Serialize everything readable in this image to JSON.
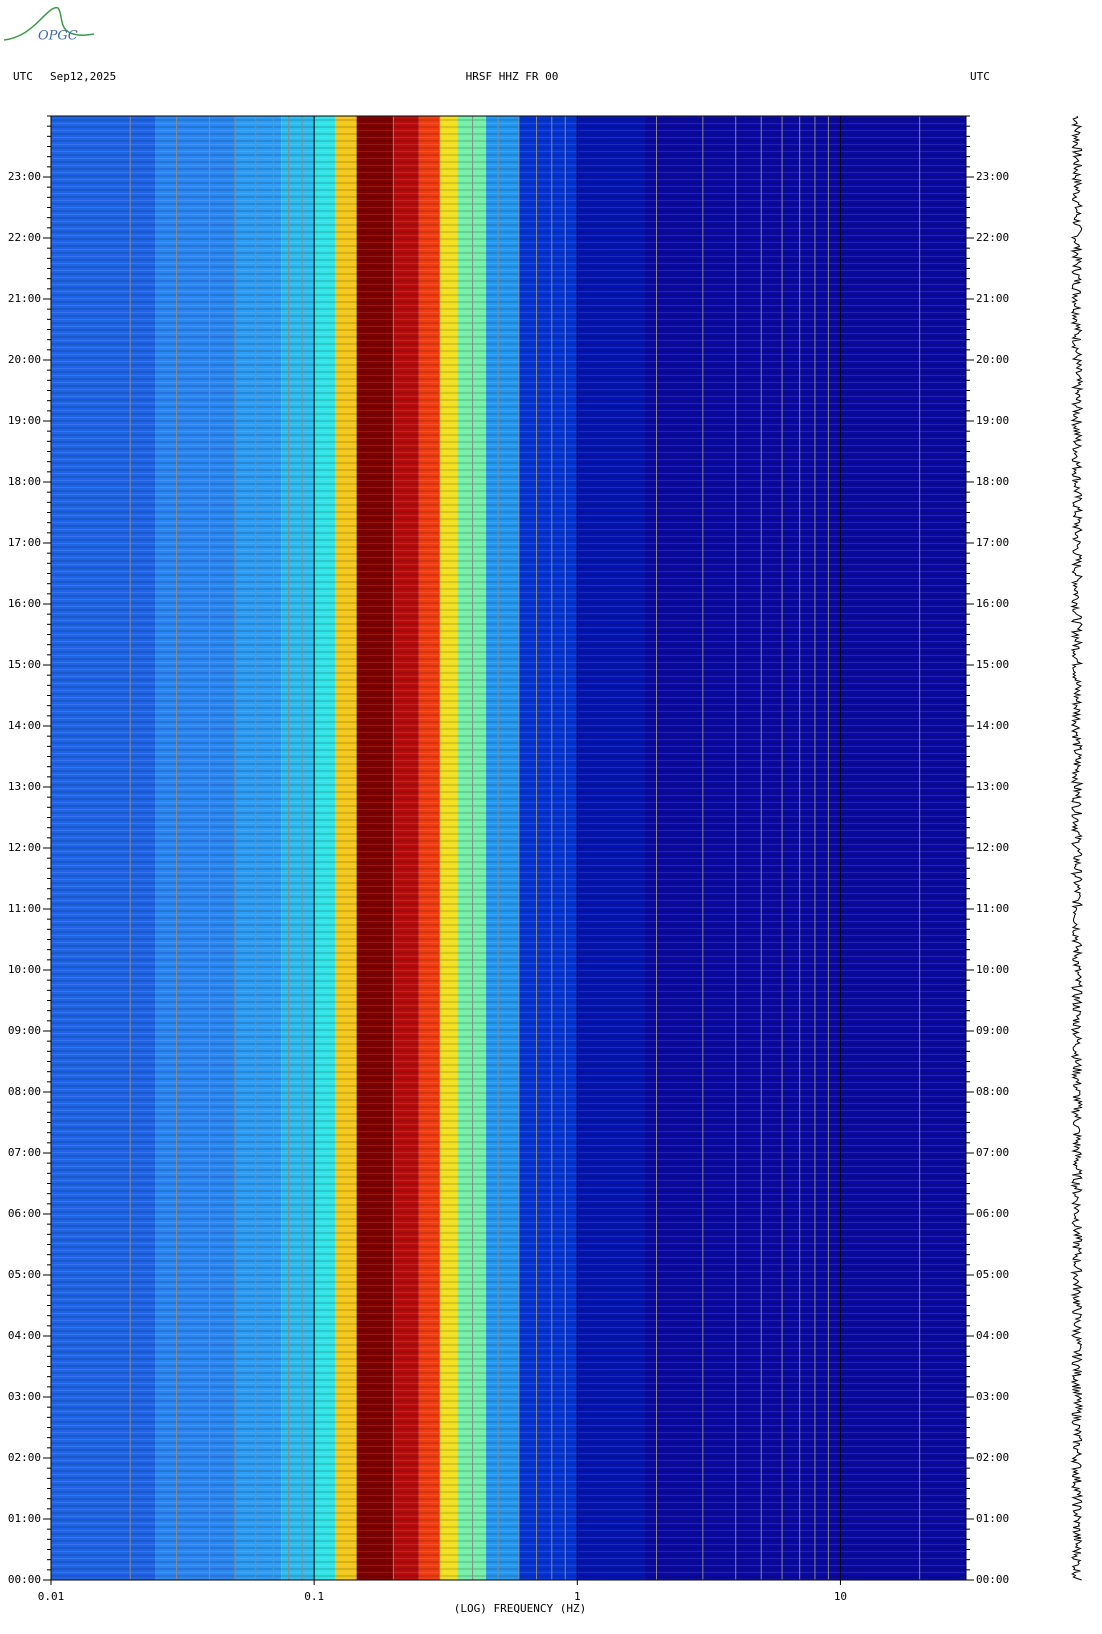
{
  "logo": "OPGC",
  "chart_data": {
    "type": "spectrogram",
    "title": "HRSF HHZ FR 00",
    "left_label": "UTC",
    "date": "Sep12,2025",
    "right_label": "UTC",
    "x_label": "(LOG) FREQUENCY (HZ)",
    "x_log": true,
    "grid": true,
    "xlim": [
      0.01,
      30
    ],
    "xticks": [
      0.01,
      0.1,
      1,
      10
    ],
    "ylim": [
      0,
      24
    ],
    "yticks": [
      {
        "value": 0,
        "label": "00:00"
      },
      {
        "value": 1,
        "label": "01:00"
      },
      {
        "value": 2,
        "label": "02:00"
      },
      {
        "value": 3,
        "label": "03:00"
      },
      {
        "value": 4,
        "label": "04:00"
      },
      {
        "value": 5,
        "label": "05:00"
      },
      {
        "value": 6,
        "label": "06:00"
      },
      {
        "value": 7,
        "label": "07:00"
      },
      {
        "value": 8,
        "label": "08:00"
      },
      {
        "value": 9,
        "label": "09:00"
      },
      {
        "value": 10,
        "label": "10:00"
      },
      {
        "value": 11,
        "label": "11:00"
      },
      {
        "value": 12,
        "label": "12:00"
      },
      {
        "value": 13,
        "label": "13:00"
      },
      {
        "value": 14,
        "label": "14:00"
      },
      {
        "value": 15,
        "label": "15:00"
      },
      {
        "value": 16,
        "label": "16:00"
      },
      {
        "value": 17,
        "label": "17:00"
      },
      {
        "value": 18,
        "label": "18:00"
      },
      {
        "value": 19,
        "label": "19:00"
      },
      {
        "value": 20,
        "label": "20:00"
      },
      {
        "value": 21,
        "label": "21:00"
      },
      {
        "value": 22,
        "label": "22:00"
      },
      {
        "value": 23,
        "label": "23:00"
      }
    ],
    "bands": [
      {
        "range": [
          0.01,
          0.025
        ],
        "color": "#1f64e6"
      },
      {
        "range": [
          0.025,
          0.05
        ],
        "color": "#2a86f2"
      },
      {
        "range": [
          0.05,
          0.075
        ],
        "color": "#2c9cf4"
      },
      {
        "range": [
          0.075,
          0.1
        ],
        "color": "#2cbcf0"
      },
      {
        "range": [
          0.1,
          0.12
        ],
        "color": "#30e4e8"
      },
      {
        "range": [
          0.12,
          0.145
        ],
        "color": "#f2c81c"
      },
      {
        "range": [
          0.145,
          0.2
        ],
        "color": "#800000"
      },
      {
        "range": [
          0.2,
          0.25
        ],
        "color": "#b80c0c"
      },
      {
        "range": [
          0.25,
          0.3
        ],
        "color": "#f03c10"
      },
      {
        "range": [
          0.3,
          0.35
        ],
        "color": "#f2e020"
      },
      {
        "range": [
          0.35,
          0.45
        ],
        "color": "#74f0a8"
      },
      {
        "range": [
          0.45,
          0.6
        ],
        "color": "#2498f0"
      },
      {
        "range": [
          0.6,
          1
        ],
        "color": "#0434d4"
      },
      {
        "range": [
          1,
          1.8
        ],
        "color": "#0414b0"
      },
      {
        "range": [
          1.8,
          30
        ],
        "color": "#0a0aa2"
      }
    ]
  }
}
